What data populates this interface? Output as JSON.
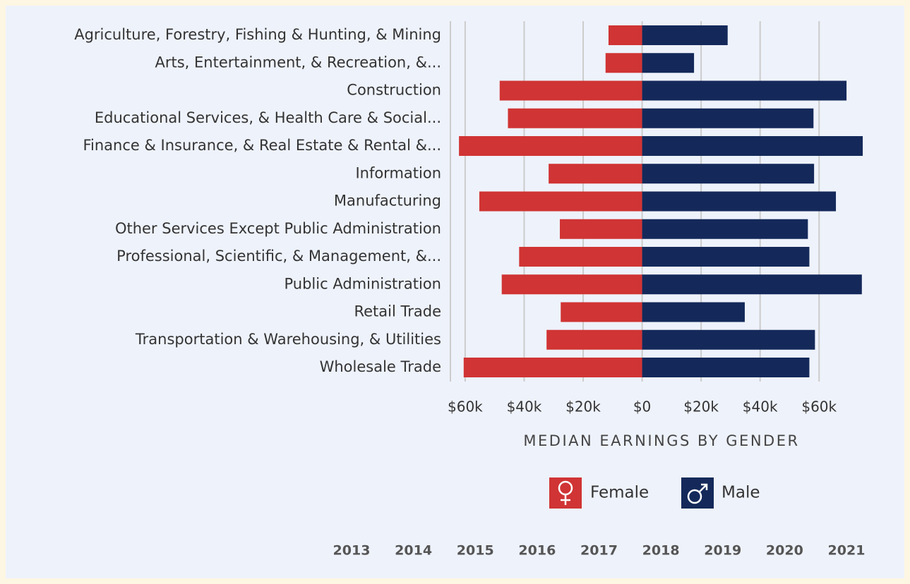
{
  "chart_data": {
    "type": "butterfly",
    "categories": [
      "Agriculture, Forestry, Fishing & Hunting, & Mining",
      "Arts, Entertainment, & Recreation, &...",
      "Construction",
      "Educational Services, & Health Care & Social...",
      "Finance & Insurance, & Real Estate & Rental &...",
      "Information",
      "Manufacturing",
      "Other Services Except Public Administration",
      "Professional, Scientific, & Management, &...",
      "Public Administration",
      "Retail Trade",
      "Transportation & Warehousing, & Utilities",
      "Wholesale Trade"
    ],
    "series": [
      {
        "name": "Female",
        "color": "#d03434",
        "values": [
          -11400,
          -12400,
          -48300,
          -45500,
          -62100,
          -31700,
          -55200,
          -27900,
          -41700,
          -47600,
          -27600,
          -32400,
          -60500
        ]
      },
      {
        "name": "Male",
        "color": "#14295a",
        "values": [
          29000,
          17600,
          69300,
          58100,
          74800,
          58300,
          65700,
          56200,
          56700,
          74500,
          34800,
          58600,
          56700
        ]
      }
    ],
    "xlim": [
      -65000,
      76700
    ],
    "xticks": [
      {
        "value": -60000,
        "label": "$60k"
      },
      {
        "value": -40000,
        "label": "$40k"
      },
      {
        "value": -20000,
        "label": "$20k"
      },
      {
        "value": 0,
        "label": "$0"
      },
      {
        "value": 20000,
        "label": "$20k"
      },
      {
        "value": 40000,
        "label": "$40k"
      },
      {
        "value": 60000,
        "label": "$60k"
      }
    ],
    "xlabel": "MEDIAN EARNINGS BY GENDER",
    "grid": true
  },
  "timeline": {
    "years": [
      "2013",
      "2014",
      "2015",
      "2016",
      "2017",
      "2018",
      "2019",
      "2020",
      "2021"
    ]
  }
}
